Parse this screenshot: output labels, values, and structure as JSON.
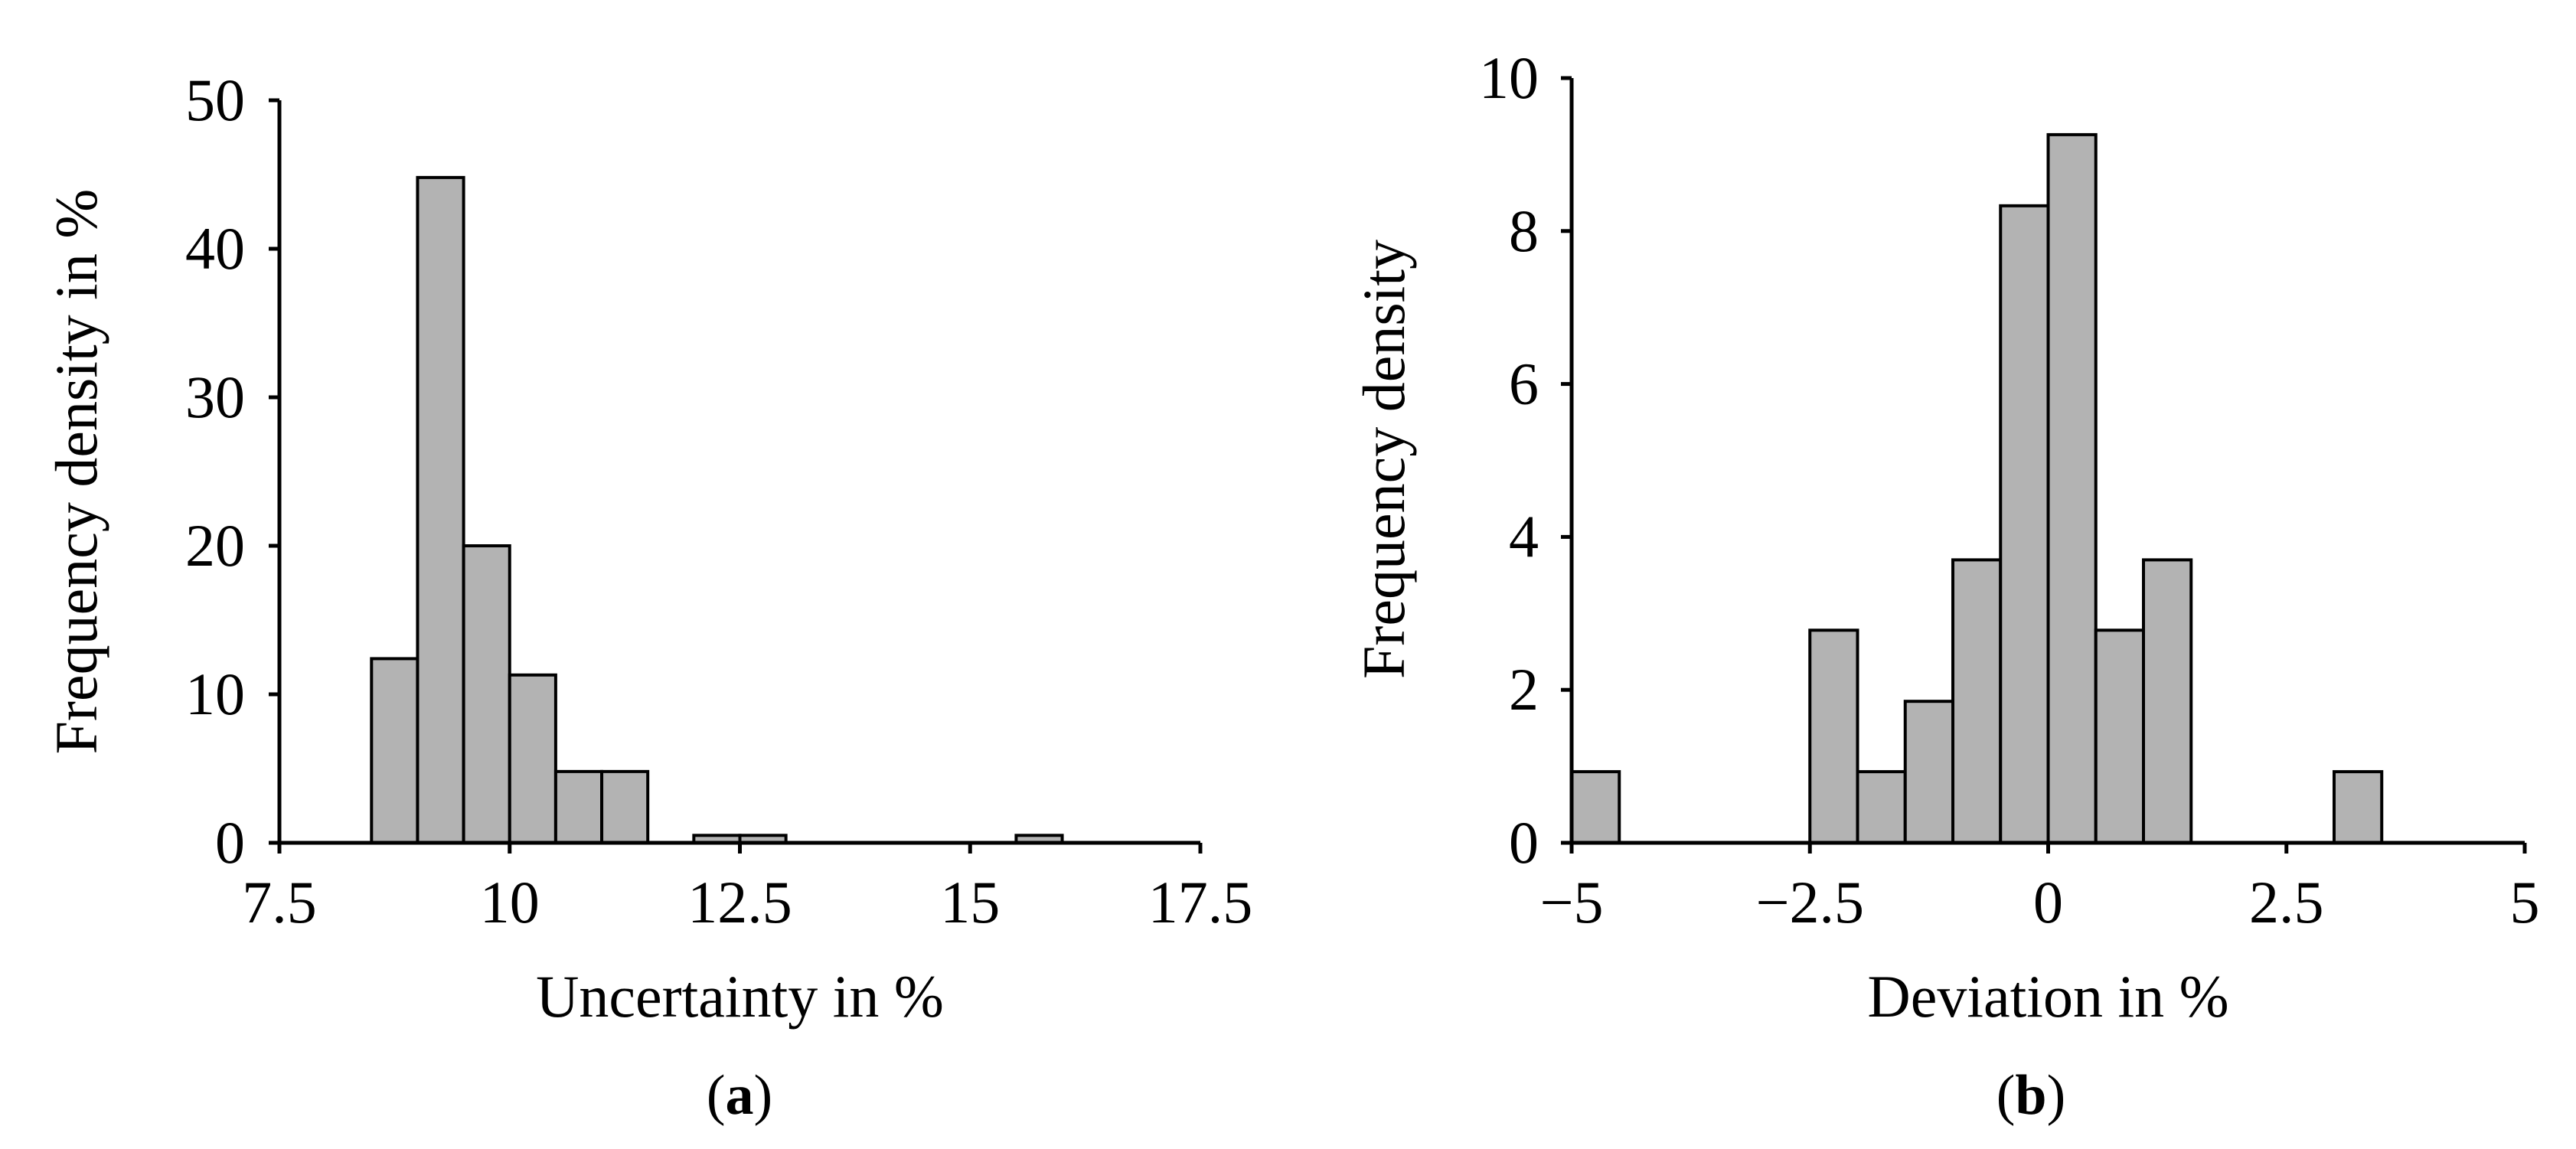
{
  "chart_data": [
    {
      "type": "bar",
      "panel_label": "a",
      "title": "",
      "xlabel": "Uncertainty in %",
      "ylabel": "Frequency density in %",
      "xlim": [
        7.5,
        17.5
      ],
      "ylim": [
        0,
        50
      ],
      "xticks": [
        7.5,
        10,
        12.5,
        15,
        17.5
      ],
      "xtick_labels": [
        "7.5",
        "10",
        "12.5",
        "15",
        "17.5"
      ],
      "yticks": [
        0,
        10,
        20,
        30,
        40,
        50
      ],
      "ytick_labels": [
        "0",
        "10",
        "20",
        "30",
        "40",
        "50"
      ],
      "bin_width": 0.5,
      "bins": [
        {
          "x0": 8.5,
          "x1": 9.0,
          "value": 12.4
        },
        {
          "x0": 9.0,
          "x1": 9.5,
          "value": 44.8
        },
        {
          "x0": 9.5,
          "x1": 10.0,
          "value": 20.0
        },
        {
          "x0": 10.0,
          "x1": 10.5,
          "value": 11.3
        },
        {
          "x0": 10.5,
          "x1": 11.0,
          "value": 4.8
        },
        {
          "x0": 11.0,
          "x1": 11.5,
          "value": 4.8
        },
        {
          "x0": 12.0,
          "x1": 12.5,
          "value": 0.5
        },
        {
          "x0": 12.5,
          "x1": 13.0,
          "value": 0.5
        },
        {
          "x0": 15.5,
          "x1": 16.0,
          "value": 0.5
        }
      ],
      "grid": false,
      "bar_color": "#b3b3b3"
    },
    {
      "type": "bar",
      "panel_label": "b",
      "title": "",
      "xlabel": "Deviation in %",
      "ylabel": "Frequency density",
      "xlim": [
        -5,
        5
      ],
      "ylim": [
        0,
        10
      ],
      "xticks": [
        -5,
        -2.5,
        0,
        2.5,
        5
      ],
      "xtick_labels": [
        "−5",
        "−2.5",
        "0",
        "2.5",
        "5"
      ],
      "yticks": [
        0,
        2,
        4,
        6,
        8,
        10
      ],
      "ytick_labels": [
        "0",
        "2",
        "4",
        "6",
        "8",
        "10"
      ],
      "bin_width": 0.5,
      "bins": [
        {
          "x0": -5.0,
          "x1": -4.5,
          "value": 0.93
        },
        {
          "x0": -2.5,
          "x1": -2.0,
          "value": 2.78
        },
        {
          "x0": -2.0,
          "x1": -1.5,
          "value": 0.93
        },
        {
          "x0": -1.5,
          "x1": -1.0,
          "value": 1.85
        },
        {
          "x0": -1.0,
          "x1": -0.5,
          "value": 3.7
        },
        {
          "x0": -0.5,
          "x1": 0.0,
          "value": 8.33
        },
        {
          "x0": 0.0,
          "x1": 0.5,
          "value": 9.26
        },
        {
          "x0": 0.5,
          "x1": 1.0,
          "value": 2.78
        },
        {
          "x0": 1.0,
          "x1": 1.5,
          "value": 3.7
        },
        {
          "x0": 3.0,
          "x1": 3.5,
          "value": 0.93
        }
      ],
      "grid": false,
      "bar_color": "#b3b3b3"
    }
  ]
}
